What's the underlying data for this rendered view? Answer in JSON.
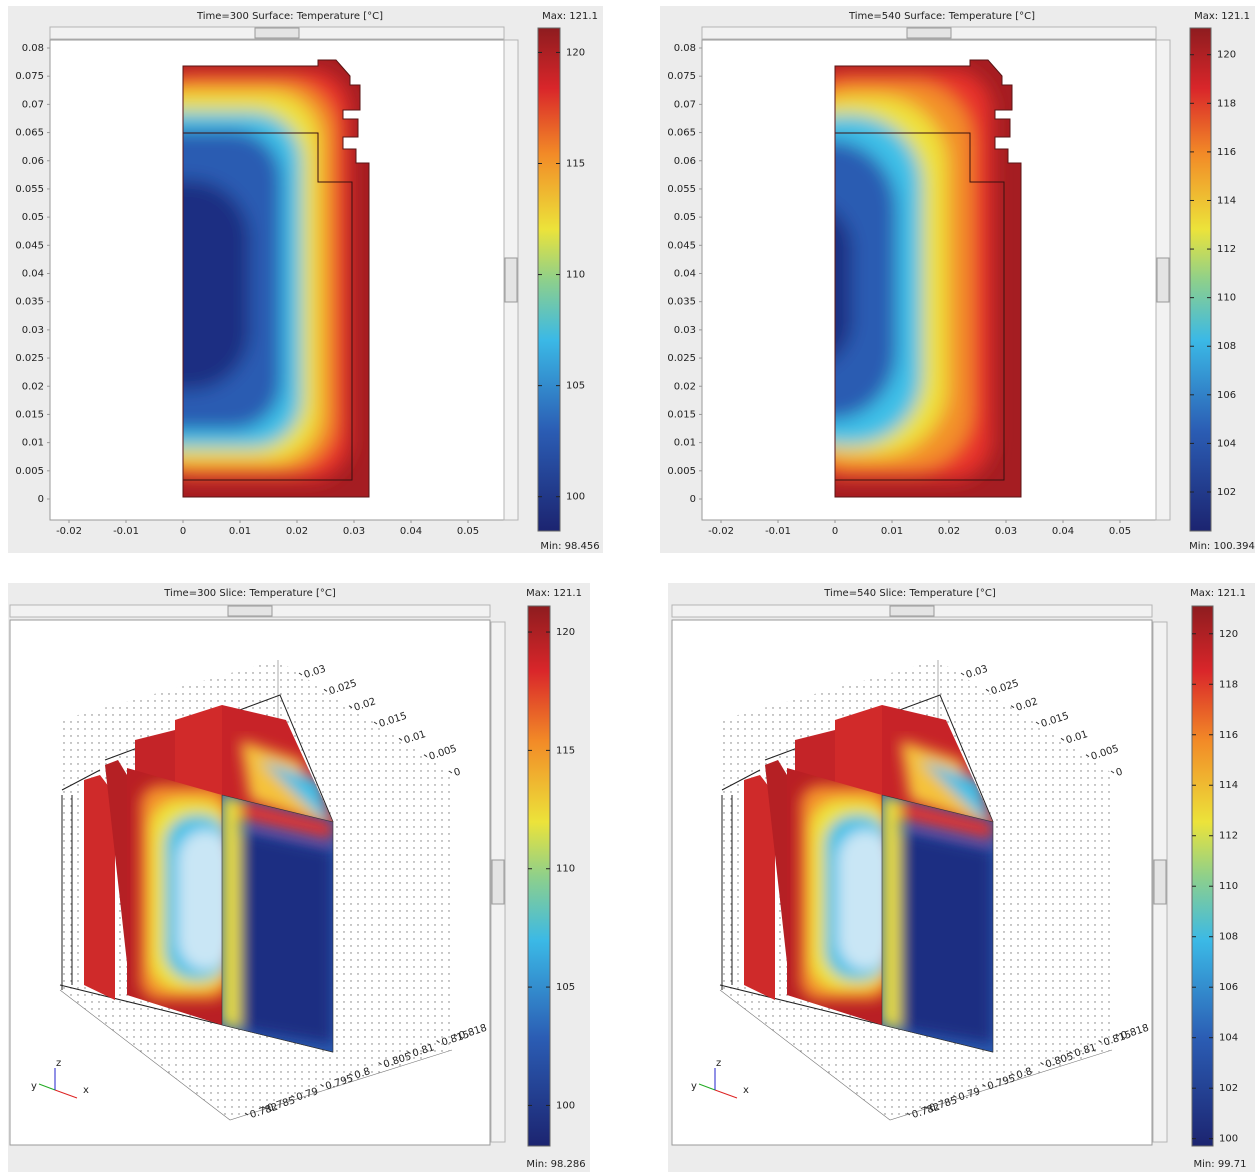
{
  "panels": [
    {
      "title": "Time=300    Surface: Temperature [°C]",
      "max_caption": "Max:",
      "max": 121.1,
      "min_caption": "Min:",
      "min": 98.456,
      "colorbar_ticks": [
        100,
        105,
        110,
        115,
        120
      ],
      "x_ticks": [
        -0.02,
        -0.01,
        0,
        0.01,
        0.02,
        0.03,
        0.04,
        0.05
      ],
      "y_ticks": [
        0,
        0.005,
        0.01,
        0.015,
        0.02,
        0.025,
        0.03,
        0.035,
        0.04,
        0.045,
        0.05,
        0.055,
        0.06,
        0.065,
        0.07,
        0.075,
        0.08
      ]
    },
    {
      "title": "Time=540    Surface: Temperature [°C]",
      "max_caption": "Max:",
      "max": 121.1,
      "min_caption": "Min:",
      "min": 100.394,
      "colorbar_ticks": [
        102,
        104,
        106,
        108,
        110,
        112,
        114,
        116,
        118,
        120
      ],
      "x_ticks": [
        -0.02,
        -0.01,
        0,
        0.01,
        0.02,
        0.03,
        0.04,
        0.05
      ],
      "y_ticks": [
        0,
        0.005,
        0.01,
        0.015,
        0.02,
        0.025,
        0.03,
        0.035,
        0.04,
        0.045,
        0.05,
        0.055,
        0.06,
        0.065,
        0.07,
        0.075,
        0.08
      ]
    },
    {
      "title": "Time=300    Slice: Temperature [°C]",
      "max_caption": "Max:",
      "max": 121.1,
      "min_caption": "Min:",
      "min": 98.286,
      "colorbar_ticks": [
        100,
        105,
        110,
        115,
        120
      ],
      "depth_ticks": [
        0.03,
        0.025,
        0.02,
        0.015,
        0.01,
        0.005,
        0
      ],
      "length_ticks": [
        0.782,
        0.785,
        0.79,
        0.795,
        0.8,
        0.805,
        0.81,
        0.815,
        0.818
      ]
    },
    {
      "title": "Time=540    Slice: Temperature [°C]",
      "max_caption": "Max:",
      "max": 121.1,
      "min_caption": "Min:",
      "min": 99.71,
      "colorbar_ticks": [
        100,
        102,
        104,
        106,
        108,
        110,
        112,
        114,
        116,
        118,
        120
      ],
      "depth_ticks": [
        0.03,
        0.025,
        0.02,
        0.015,
        0.01,
        0.005,
        0
      ],
      "length_ticks": [
        0.782,
        0.785,
        0.79,
        0.795,
        0.8,
        0.805,
        0.81,
        0.815,
        0.818
      ]
    }
  ],
  "axis_triad_labels": [
    "x",
    "y",
    "z"
  ]
}
